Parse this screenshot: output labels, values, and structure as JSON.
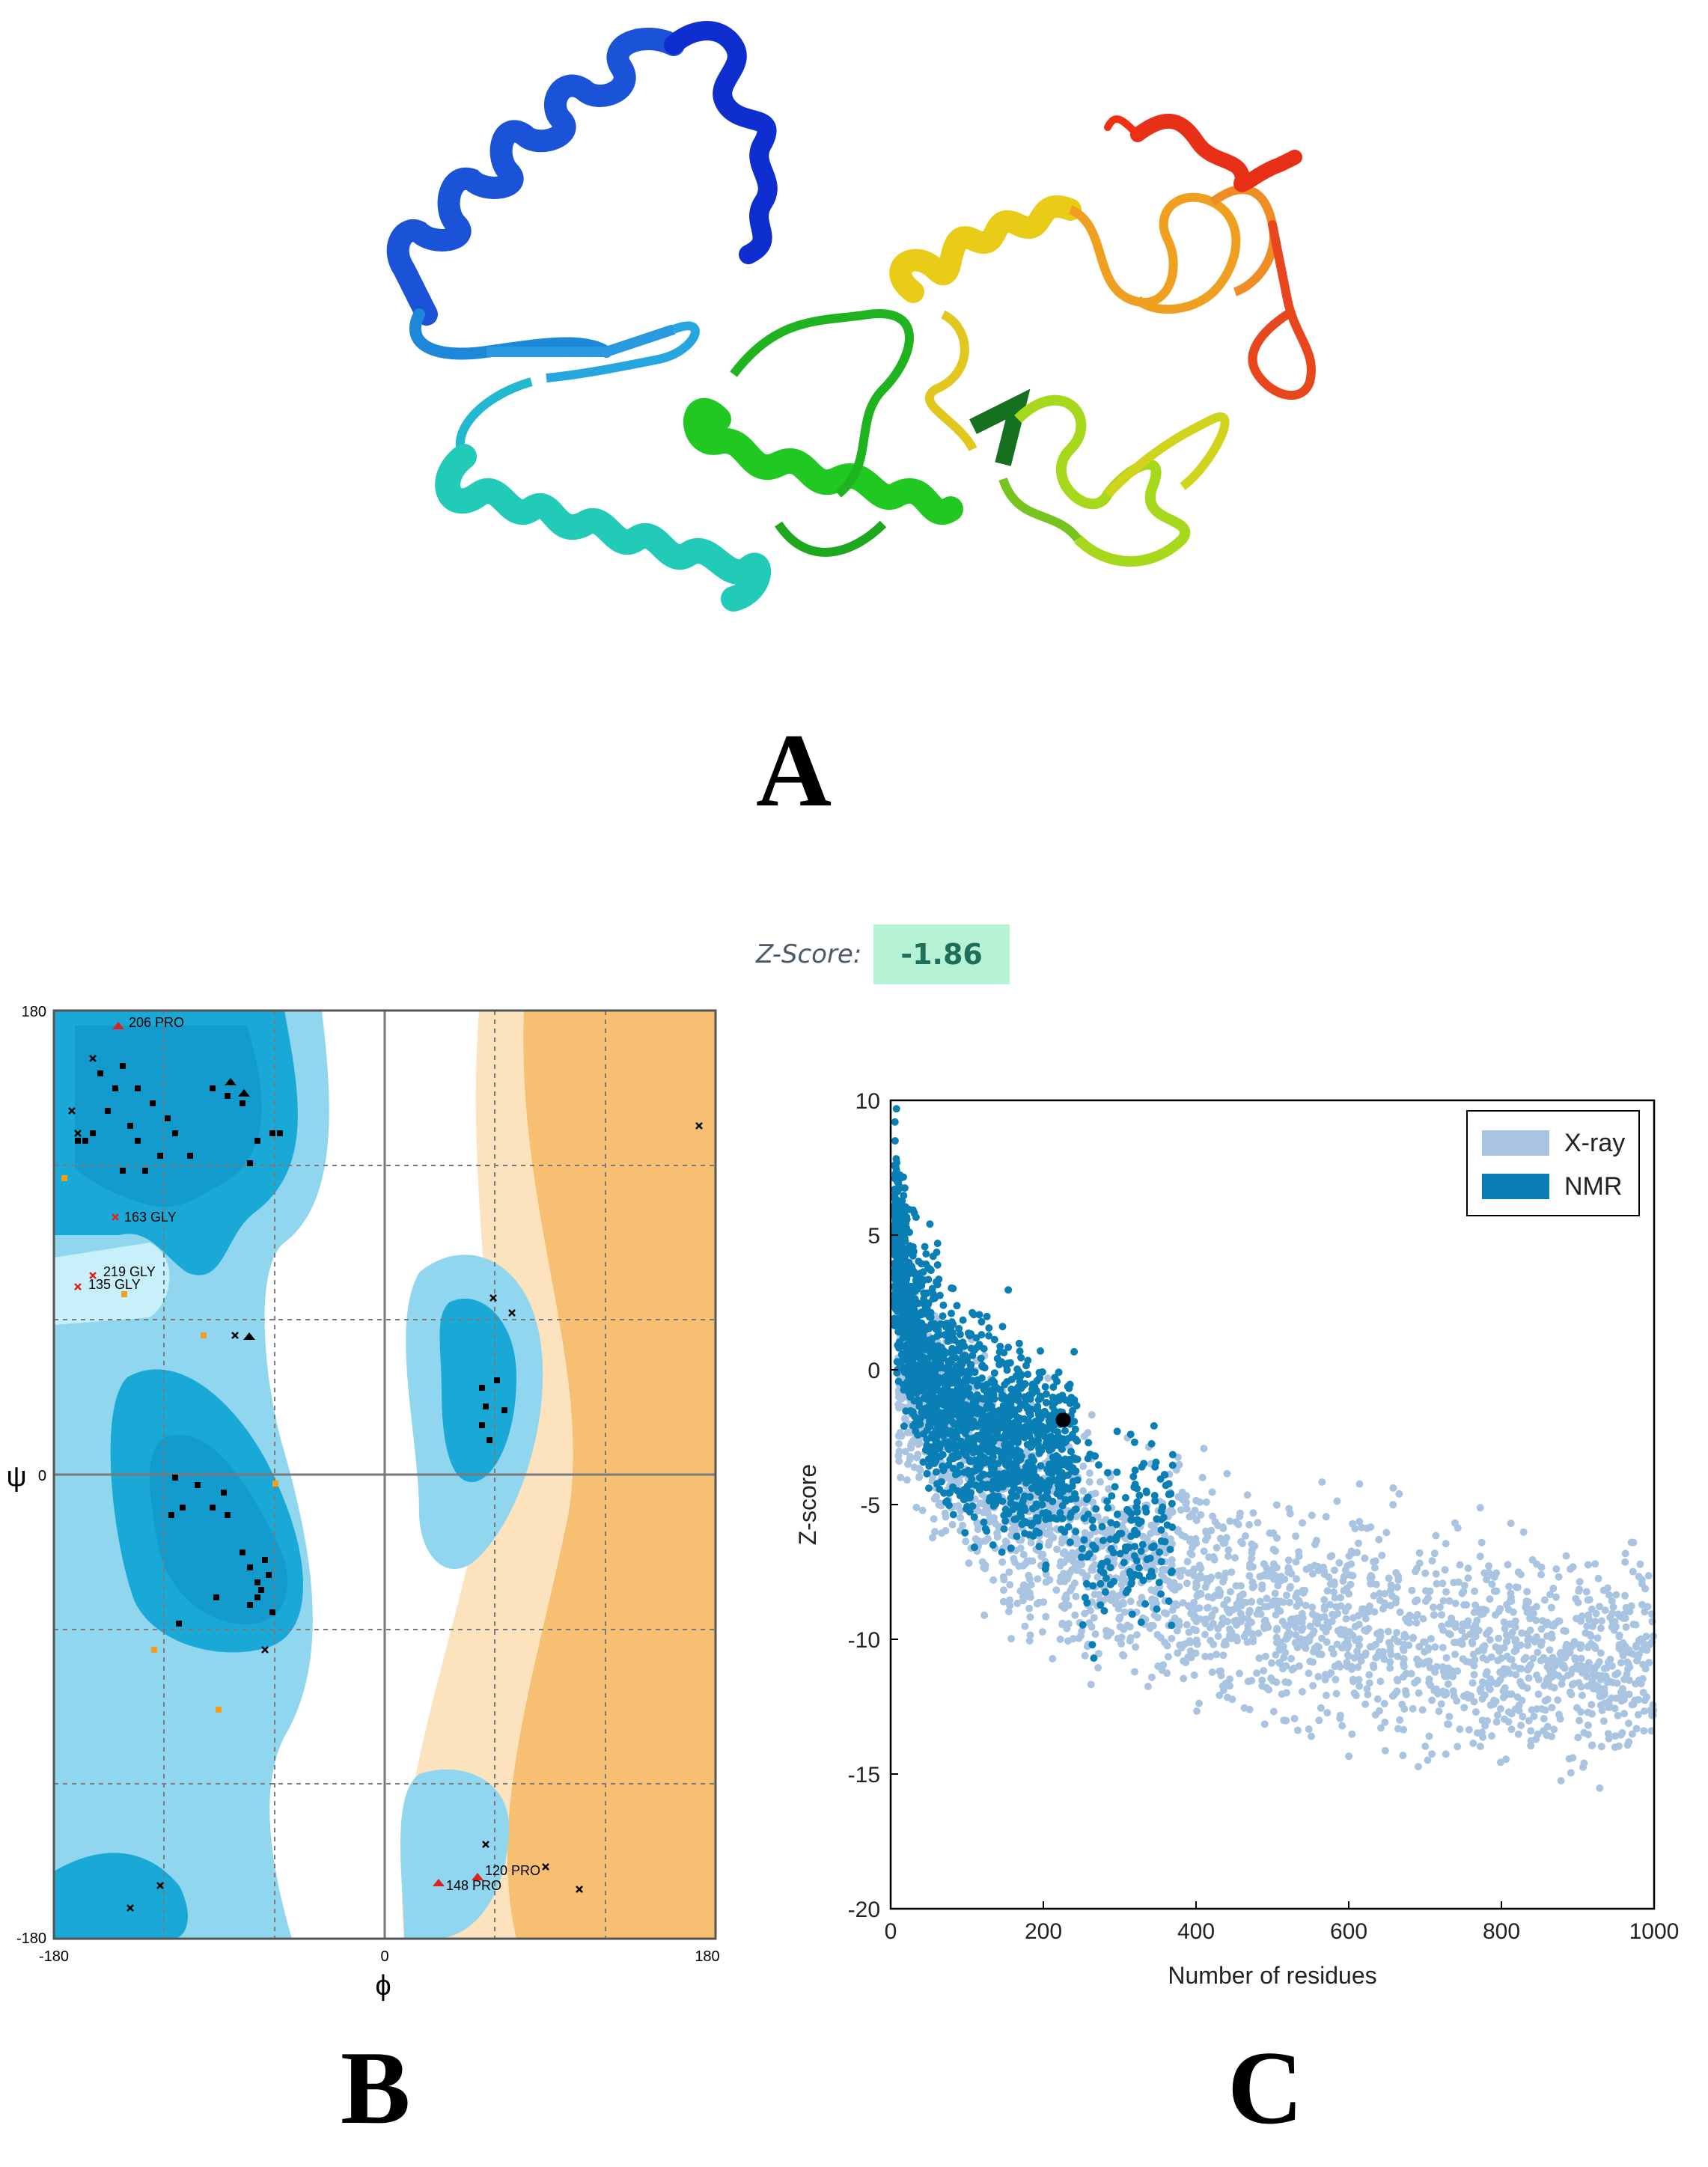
{
  "panels": {
    "a": "A",
    "b": "B",
    "c": "C"
  },
  "colors": {
    "helix_blue": "#1536d8",
    "helix_cyan": "#1ec8c0",
    "helix_green": "#20c820",
    "yellow": "#e8d020",
    "orange": "#f09020",
    "red": "#e82010",
    "rama_core": "#1aa8d6",
    "rama_allowed": "#5bc0de",
    "rama_orange": "#f6bf72",
    "rama_peach": "#fde3bd",
    "xray": "#a9c4e1",
    "nmr": "#0a7fb5"
  },
  "zscore": {
    "label": "Z-Score:",
    "value": "-1.86"
  },
  "ramachandran": {
    "psi_label": "ψ",
    "phi_label": "ϕ",
    "x_ticks": [
      "-180",
      "0",
      "180"
    ],
    "y_ticks": [
      "180",
      "0",
      "-180"
    ],
    "residue_labels": [
      "206 PRO",
      "163 GLY",
      "219 GLY",
      "135 GLY",
      "120 PRO",
      "148 PRO"
    ]
  },
  "chart_data": {
    "type": "scatter",
    "title": "",
    "xlabel": "Number of residues",
    "ylabel": "Z-score",
    "xlim": [
      0,
      1000
    ],
    "ylim": [
      -20,
      10
    ],
    "x_ticks": [
      0,
      200,
      400,
      600,
      800,
      1000
    ],
    "y_ticks": [
      10,
      5,
      0,
      -5,
      -10,
      -15,
      -20
    ],
    "legend_position": "top-right",
    "series": [
      {
        "name": "X-ray",
        "color": "#a9c4e1"
      },
      {
        "name": "NMR",
        "color": "#0a7fb5"
      }
    ],
    "highlight_point": {
      "x": 226,
      "y": -1.86
    }
  }
}
